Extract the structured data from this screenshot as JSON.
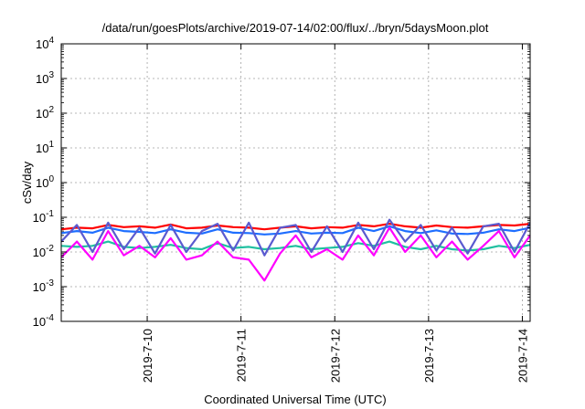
{
  "chart_data": {
    "type": "line",
    "title": "/data/run/goesPlots/archive/2019-07-14/02:00/flux/../bryn/5daysMoon.plot",
    "xlabel": "Coordinated Universal Time (UTC)",
    "ylabel": "cSv/day",
    "yscale": "log",
    "ylim": [
      0.0001,
      10000
    ],
    "xlim": [
      "2019-07-09 02:00",
      "2019-07-14 02:00"
    ],
    "grid": true,
    "legend": "none",
    "y_ticks": [
      {
        "value": 0.0001,
        "base": "10",
        "exp": "-4"
      },
      {
        "value": 0.001,
        "base": "10",
        "exp": "-3"
      },
      {
        "value": 0.01,
        "base": "10",
        "exp": "-2"
      },
      {
        "value": 0.1,
        "base": "10",
        "exp": "-1"
      },
      {
        "value": 1,
        "base": "10",
        "exp": "0"
      },
      {
        "value": 10,
        "base": "10",
        "exp": "1"
      },
      {
        "value": 100,
        "base": "10",
        "exp": "2"
      },
      {
        "value": 1000,
        "base": "10",
        "exp": "3"
      },
      {
        "value": 10000,
        "base": "10",
        "exp": "4"
      }
    ],
    "x_ticks": [
      {
        "label": "2019-7-10",
        "value": "2019-07-10 00:00"
      },
      {
        "label": "2019-7-11",
        "value": "2019-07-11 00:00"
      },
      {
        "label": "2019-7-12",
        "value": "2019-07-12 00:00"
      },
      {
        "label": "2019-7-13",
        "value": "2019-07-13 00:00"
      },
      {
        "label": "2019-7-14",
        "value": "2019-07-14 00:00"
      }
    ],
    "series": [
      {
        "color": "#ff0000",
        "x": [
          "2019-07-09 02:00",
          "2019-07-09 06:00",
          "2019-07-09 10:00",
          "2019-07-09 14:00",
          "2019-07-09 18:00",
          "2019-07-09 22:00",
          "2019-07-10 02:00",
          "2019-07-10 06:00",
          "2019-07-10 10:00",
          "2019-07-10 14:00",
          "2019-07-10 18:00",
          "2019-07-10 22:00",
          "2019-07-11 02:00",
          "2019-07-11 06:00",
          "2019-07-11 10:00",
          "2019-07-11 14:00",
          "2019-07-11 18:00",
          "2019-07-11 22:00",
          "2019-07-12 02:00",
          "2019-07-12 06:00",
          "2019-07-12 10:00",
          "2019-07-12 14:00",
          "2019-07-12 18:00",
          "2019-07-12 22:00",
          "2019-07-13 02:00",
          "2019-07-13 06:00",
          "2019-07-13 10:00",
          "2019-07-13 14:00",
          "2019-07-13 18:00",
          "2019-07-13 22:00",
          "2019-07-14 02:00"
        ],
        "values": [
          0.045,
          0.05,
          0.048,
          0.06,
          0.052,
          0.055,
          0.05,
          0.062,
          0.048,
          0.05,
          0.058,
          0.052,
          0.05,
          0.045,
          0.05,
          0.055,
          0.048,
          0.052,
          0.05,
          0.06,
          0.055,
          0.065,
          0.055,
          0.05,
          0.058,
          0.052,
          0.05,
          0.055,
          0.06,
          0.058,
          0.065
        ]
      },
      {
        "color": "#1e6eff",
        "x": [
          "2019-07-09 02:00",
          "2019-07-09 06:00",
          "2019-07-09 10:00",
          "2019-07-09 14:00",
          "2019-07-09 18:00",
          "2019-07-09 22:00",
          "2019-07-10 02:00",
          "2019-07-10 06:00",
          "2019-07-10 10:00",
          "2019-07-10 14:00",
          "2019-07-10 18:00",
          "2019-07-10 22:00",
          "2019-07-11 02:00",
          "2019-07-11 06:00",
          "2019-07-11 10:00",
          "2019-07-11 14:00",
          "2019-07-11 18:00",
          "2019-07-11 22:00",
          "2019-07-12 02:00",
          "2019-07-12 06:00",
          "2019-07-12 10:00",
          "2019-07-12 14:00",
          "2019-07-12 18:00",
          "2019-07-12 22:00",
          "2019-07-13 02:00",
          "2019-07-13 06:00",
          "2019-07-13 10:00",
          "2019-07-13 14:00",
          "2019-07-13 18:00",
          "2019-07-13 22:00",
          "2019-07-14 02:00"
        ],
        "values": [
          0.035,
          0.04,
          0.036,
          0.05,
          0.04,
          0.038,
          0.035,
          0.045,
          0.036,
          0.034,
          0.045,
          0.036,
          0.035,
          0.032,
          0.034,
          0.04,
          0.034,
          0.036,
          0.035,
          0.05,
          0.04,
          0.055,
          0.04,
          0.035,
          0.042,
          0.034,
          0.033,
          0.036,
          0.045,
          0.04,
          0.05
        ]
      },
      {
        "color": "#20c0a0",
        "x": [
          "2019-07-09 02:00",
          "2019-07-09 06:00",
          "2019-07-09 10:00",
          "2019-07-09 14:00",
          "2019-07-09 18:00",
          "2019-07-09 22:00",
          "2019-07-10 02:00",
          "2019-07-10 06:00",
          "2019-07-10 10:00",
          "2019-07-10 14:00",
          "2019-07-10 18:00",
          "2019-07-10 22:00",
          "2019-07-11 02:00",
          "2019-07-11 06:00",
          "2019-07-11 10:00",
          "2019-07-11 14:00",
          "2019-07-11 18:00",
          "2019-07-11 22:00",
          "2019-07-12 02:00",
          "2019-07-12 06:00",
          "2019-07-12 10:00",
          "2019-07-12 14:00",
          "2019-07-12 18:00",
          "2019-07-12 22:00",
          "2019-07-13 02:00",
          "2019-07-13 06:00",
          "2019-07-13 10:00",
          "2019-07-13 14:00",
          "2019-07-13 18:00",
          "2019-07-13 22:00",
          "2019-07-14 02:00"
        ],
        "values": [
          0.015,
          0.014,
          0.015,
          0.02,
          0.014,
          0.013,
          0.014,
          0.016,
          0.013,
          0.012,
          0.018,
          0.013,
          0.014,
          0.012,
          0.013,
          0.015,
          0.012,
          0.013,
          0.014,
          0.018,
          0.015,
          0.02,
          0.014,
          0.012,
          0.015,
          0.012,
          0.011,
          0.012,
          0.015,
          0.013,
          0.016
        ]
      },
      {
        "color": "#5a5ad0",
        "x": [
          "2019-07-09 02:00",
          "2019-07-09 06:00",
          "2019-07-09 10:00",
          "2019-07-09 14:00",
          "2019-07-09 18:00",
          "2019-07-09 22:00",
          "2019-07-10 02:00",
          "2019-07-10 06:00",
          "2019-07-10 10:00",
          "2019-07-10 14:00",
          "2019-07-10 18:00",
          "2019-07-10 22:00",
          "2019-07-11 02:00",
          "2019-07-11 06:00",
          "2019-07-11 10:00",
          "2019-07-11 14:00",
          "2019-07-11 18:00",
          "2019-07-11 22:00",
          "2019-07-12 02:00",
          "2019-07-12 06:00",
          "2019-07-12 10:00",
          "2019-07-12 14:00",
          "2019-07-12 18:00",
          "2019-07-12 22:00",
          "2019-07-13 02:00",
          "2019-07-13 06:00",
          "2019-07-13 10:00",
          "2019-07-13 14:00",
          "2019-07-13 18:00",
          "2019-07-13 22:00",
          "2019-07-14 02:00"
        ],
        "values": [
          0.02,
          0.06,
          0.01,
          0.07,
          0.012,
          0.05,
          0.009,
          0.06,
          0.01,
          0.04,
          0.065,
          0.011,
          0.07,
          0.008,
          0.05,
          0.06,
          0.01,
          0.055,
          0.01,
          0.07,
          0.012,
          0.085,
          0.02,
          0.06,
          0.011,
          0.05,
          0.009,
          0.055,
          0.065,
          0.01,
          0.07
        ]
      },
      {
        "color": "#ff00ff",
        "x": [
          "2019-07-09 02:00",
          "2019-07-09 06:00",
          "2019-07-09 10:00",
          "2019-07-09 14:00",
          "2019-07-09 18:00",
          "2019-07-09 22:00",
          "2019-07-10 02:00",
          "2019-07-10 06:00",
          "2019-07-10 10:00",
          "2019-07-10 14:00",
          "2019-07-10 18:00",
          "2019-07-10 22:00",
          "2019-07-11 02:00",
          "2019-07-11 06:00",
          "2019-07-11 10:00",
          "2019-07-11 14:00",
          "2019-07-11 18:00",
          "2019-07-11 22:00",
          "2019-07-12 02:00",
          "2019-07-12 06:00",
          "2019-07-12 10:00",
          "2019-07-12 14:00",
          "2019-07-12 18:00",
          "2019-07-12 22:00",
          "2019-07-13 02:00",
          "2019-07-13 06:00",
          "2019-07-13 10:00",
          "2019-07-13 14:00",
          "2019-07-13 18:00",
          "2019-07-13 22:00",
          "2019-07-14 02:00"
        ],
        "values": [
          0.007,
          0.02,
          0.006,
          0.04,
          0.008,
          0.015,
          0.007,
          0.025,
          0.006,
          0.008,
          0.02,
          0.007,
          0.006,
          0.0015,
          0.009,
          0.03,
          0.007,
          0.012,
          0.006,
          0.03,
          0.008,
          0.05,
          0.01,
          0.03,
          0.007,
          0.02,
          0.006,
          0.015,
          0.04,
          0.007,
          0.03
        ]
      }
    ]
  }
}
